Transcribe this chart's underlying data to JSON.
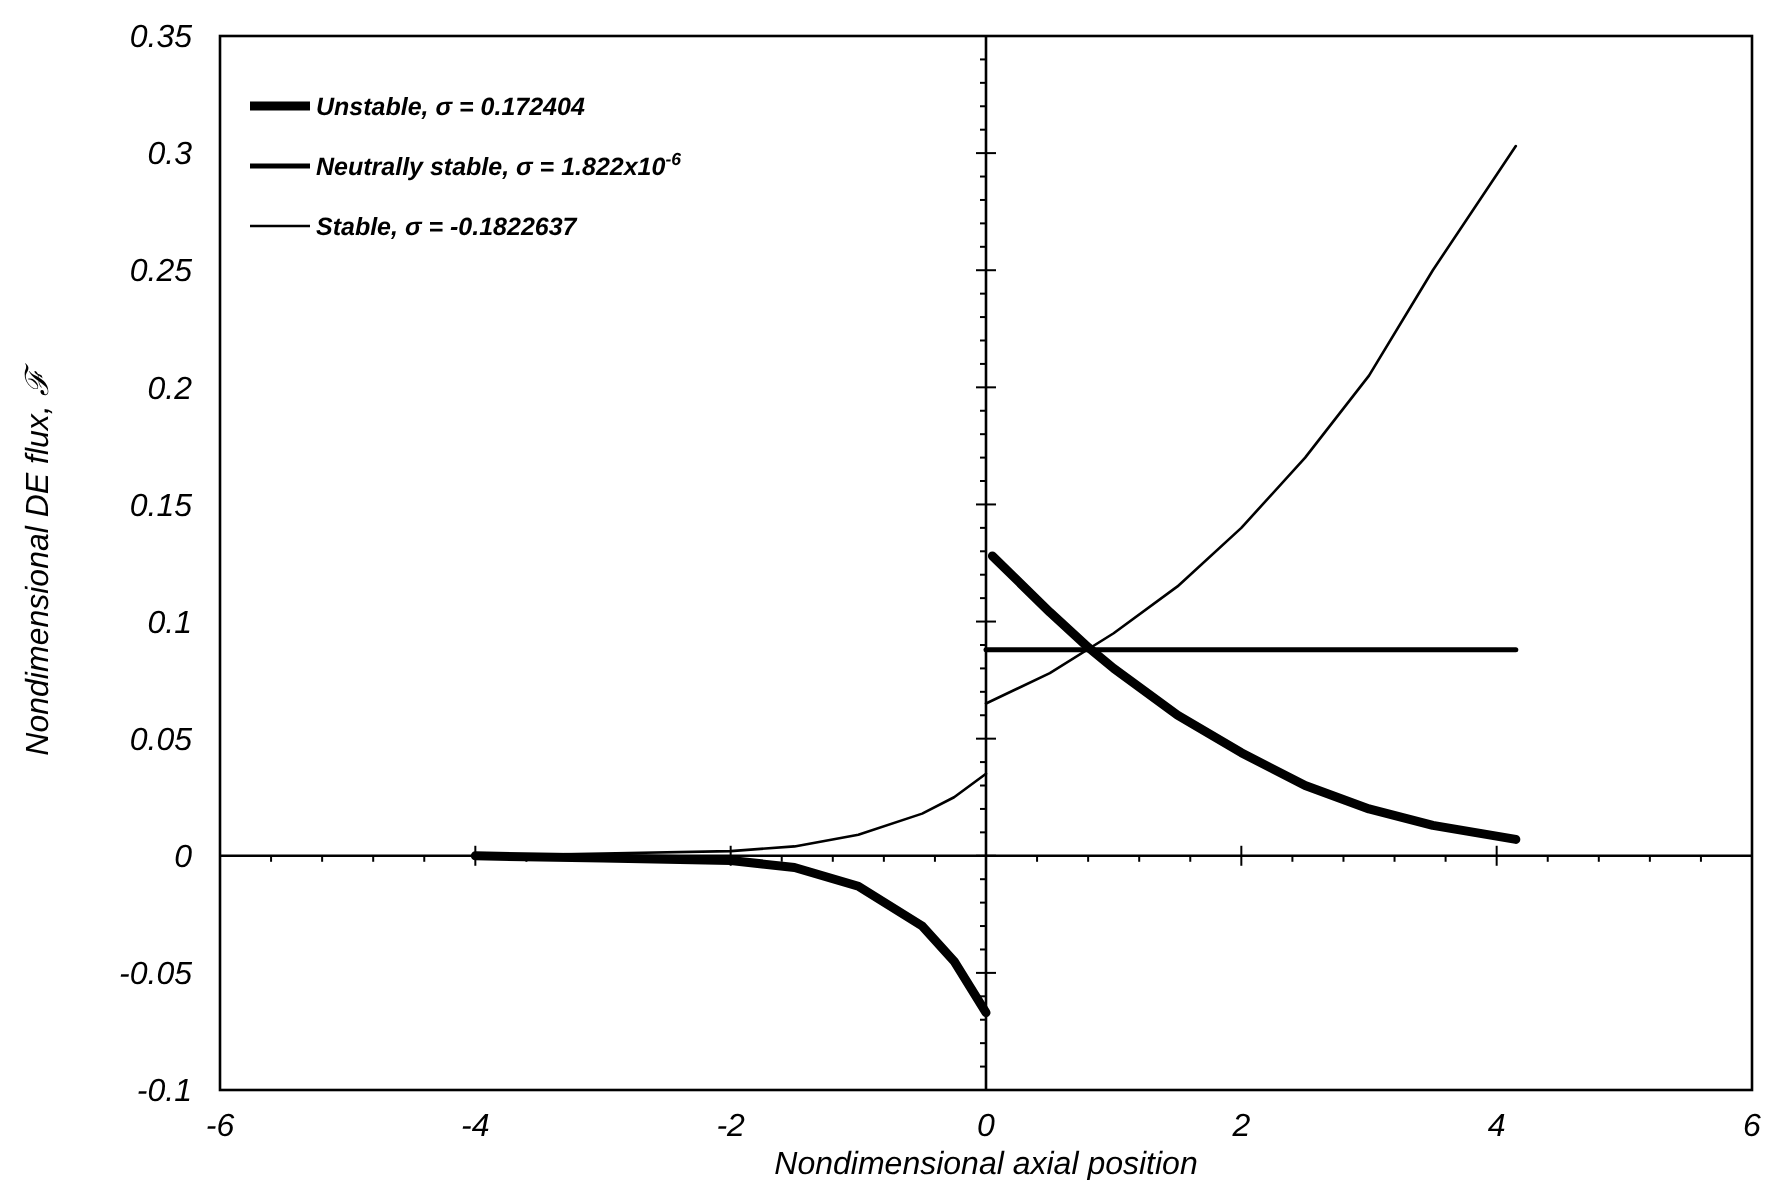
{
  "chart_data": {
    "type": "line",
    "xlabel": "Nondimensional axial position",
    "ylabel": "Nondimensional DE flux, ℱ",
    "xlim": [
      -6,
      6
    ],
    "xticks": [
      -6,
      -4,
      -2,
      0,
      2,
      4,
      6
    ],
    "ylim": [
      -0.1,
      0.35
    ],
    "yticks": [
      -0.1,
      -0.05,
      0,
      0.05,
      0.1,
      0.15,
      0.2,
      0.25,
      0.3,
      0.35
    ],
    "grid": false,
    "legend": "top left",
    "marker": "none",
    "line_style": "solid",
    "series": [
      {
        "name": "Unstable, σ = 0.172404",
        "color": "#000000",
        "x": [
          -4,
          -3,
          -2,
          -1.5,
          -1,
          -0.5,
          -0.25,
          0,
          null,
          0.05,
          0.5,
          0.8,
          1,
          1.5,
          2,
          2.5,
          3,
          3.5,
          4.15
        ],
        "values": [
          0,
          -0.001,
          -0.002,
          -0.005,
          -0.013,
          -0.03,
          -0.045,
          -0.067,
          null,
          0.128,
          0.104,
          0.089,
          0.08,
          0.06,
          0.044,
          0.03,
          0.02,
          0.013,
          0.007
        ]
      },
      {
        "name": "Neutrally stable, σ = 1.822x10$^{-6}$",
        "color": "#000000",
        "x": [
          0,
          4.15
        ],
        "values": [
          0.088,
          0.088
        ]
      },
      {
        "name": "Stable, σ = -0.1822637",
        "color": "#000000",
        "x": [
          -4,
          -3,
          -2,
          -1.5,
          -1,
          -0.5,
          -0.25,
          0,
          null,
          0,
          0.5,
          1,
          1.5,
          2,
          2.5,
          3,
          3.5,
          4.15
        ],
        "values": [
          0,
          0.001,
          0.002,
          0.004,
          0.009,
          0.018,
          0.025,
          0.035,
          null,
          0.065,
          0.078,
          0.095,
          0.115,
          0.14,
          0.17,
          0.205,
          0.25,
          0.303
        ]
      }
    ]
  }
}
